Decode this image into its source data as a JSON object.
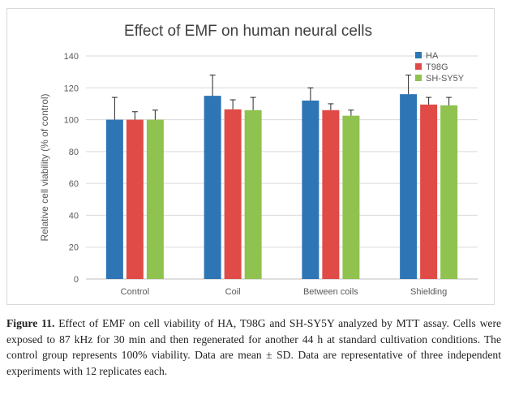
{
  "chart_data": {
    "type": "bar",
    "title": "Effect of EMF on human neural cells",
    "xlabel": "",
    "ylabel": "Relative cell viability (% of control)",
    "ylim": [
      0,
      140
    ],
    "yticks": [
      0,
      20,
      40,
      60,
      80,
      100,
      120,
      140
    ],
    "grid": true,
    "legend_position": "top-right",
    "categories": [
      "Control",
      "Coil",
      "Between coils",
      "Shielding"
    ],
    "series": [
      {
        "name": "HA",
        "color": "#2e75b6",
        "values": [
          100,
          115,
          112,
          116
        ],
        "errors": [
          14,
          13,
          8,
          12
        ]
      },
      {
        "name": "T98G",
        "color": "#e04b48",
        "values": [
          100,
          106.5,
          106,
          109.5
        ],
        "errors": [
          5,
          6,
          4,
          4.5
        ]
      },
      {
        "name": "SH-SY5Y",
        "color": "#8fc24f",
        "values": [
          100,
          106,
          102.5,
          109
        ],
        "errors": [
          6,
          8,
          3.5,
          5
        ]
      }
    ]
  },
  "caption": {
    "label": "Figure 11.",
    "text": " Effect of EMF on cell viability of HA, T98G and SH-SY5Y analyzed by MTT assay. Cells were exposed to 87 kHz for 30 min and then regenerated for another 44 h at standard cultivation conditions. The control group represents 100% viability. Data are mean ± SD. Data are representative of three independent experiments with 12 replicates each."
  }
}
